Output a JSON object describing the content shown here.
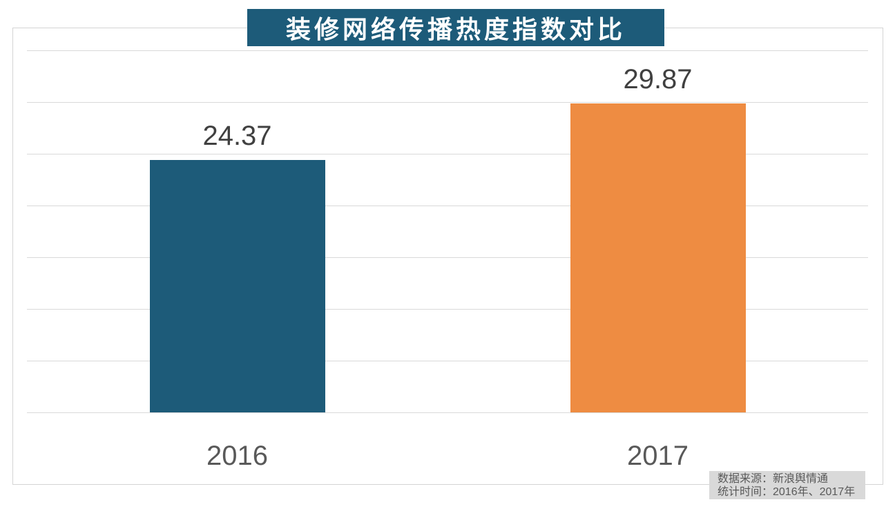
{
  "page": {
    "background": "#ffffff"
  },
  "title": {
    "text": "装修网络传播热度指数对比",
    "bg_color": "#1d5b79",
    "text_color": "#ffffff"
  },
  "chart_data": {
    "type": "bar",
    "title": "装修网络传播热度指数对比",
    "categories": [
      "2016",
      "2017"
    ],
    "values": [
      24.37,
      29.87
    ],
    "value_labels": [
      "24.37",
      "29.87"
    ],
    "bar_colors": [
      "#1d5b79",
      "#ee8c42"
    ],
    "ylim": [
      0,
      35
    ],
    "grid_step": 5,
    "grid": true,
    "y_axis_labels_visible": false,
    "legend_position": "none",
    "value_label_color": "#404040",
    "axis_label_color": "#595959",
    "gridline_color": "#d9d9d9"
  },
  "source_note": {
    "line1": "数据来源：新浪舆情通",
    "line2": "统计时间：2016年、2017年",
    "bg_color": "#d9d9d9",
    "text_color": "#595959"
  }
}
